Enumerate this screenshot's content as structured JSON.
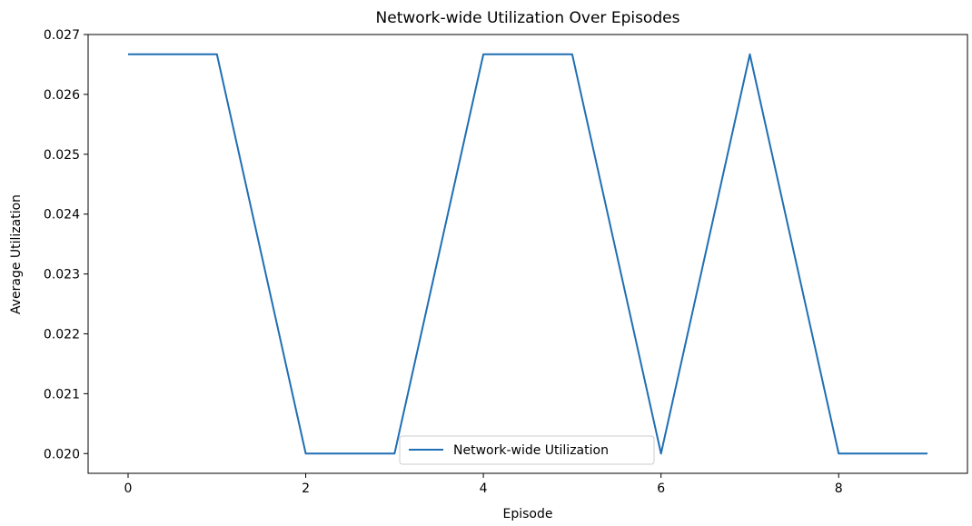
{
  "chart_data": {
    "type": "line",
    "title": "Network-wide Utilization Over Episodes",
    "xlabel": "Episode",
    "ylabel": "Average Utilization",
    "xlim": [
      -0.45,
      9.45
    ],
    "ylim": [
      0.01967,
      0.027
    ],
    "xticks": [
      0,
      2,
      4,
      6,
      8
    ],
    "xtick_labels": [
      "0",
      "2",
      "4",
      "6",
      "8"
    ],
    "yticks": [
      0.02,
      0.021,
      0.022,
      0.023,
      0.024,
      0.025,
      0.026,
      0.027
    ],
    "ytick_labels": [
      "0.020",
      "0.021",
      "0.022",
      "0.023",
      "0.024",
      "0.025",
      "0.026",
      "0.027"
    ],
    "grid": false,
    "legend_position": "lower-center",
    "series": [
      {
        "name": "Network-wide Utilization",
        "color": "#1f6fb4",
        "x": [
          0,
          1,
          2,
          3,
          4,
          5,
          6,
          7,
          8,
          9
        ],
        "y": [
          0.02667,
          0.02667,
          0.02,
          0.02,
          0.02667,
          0.02667,
          0.02,
          0.02667,
          0.02,
          0.02
        ]
      }
    ]
  }
}
